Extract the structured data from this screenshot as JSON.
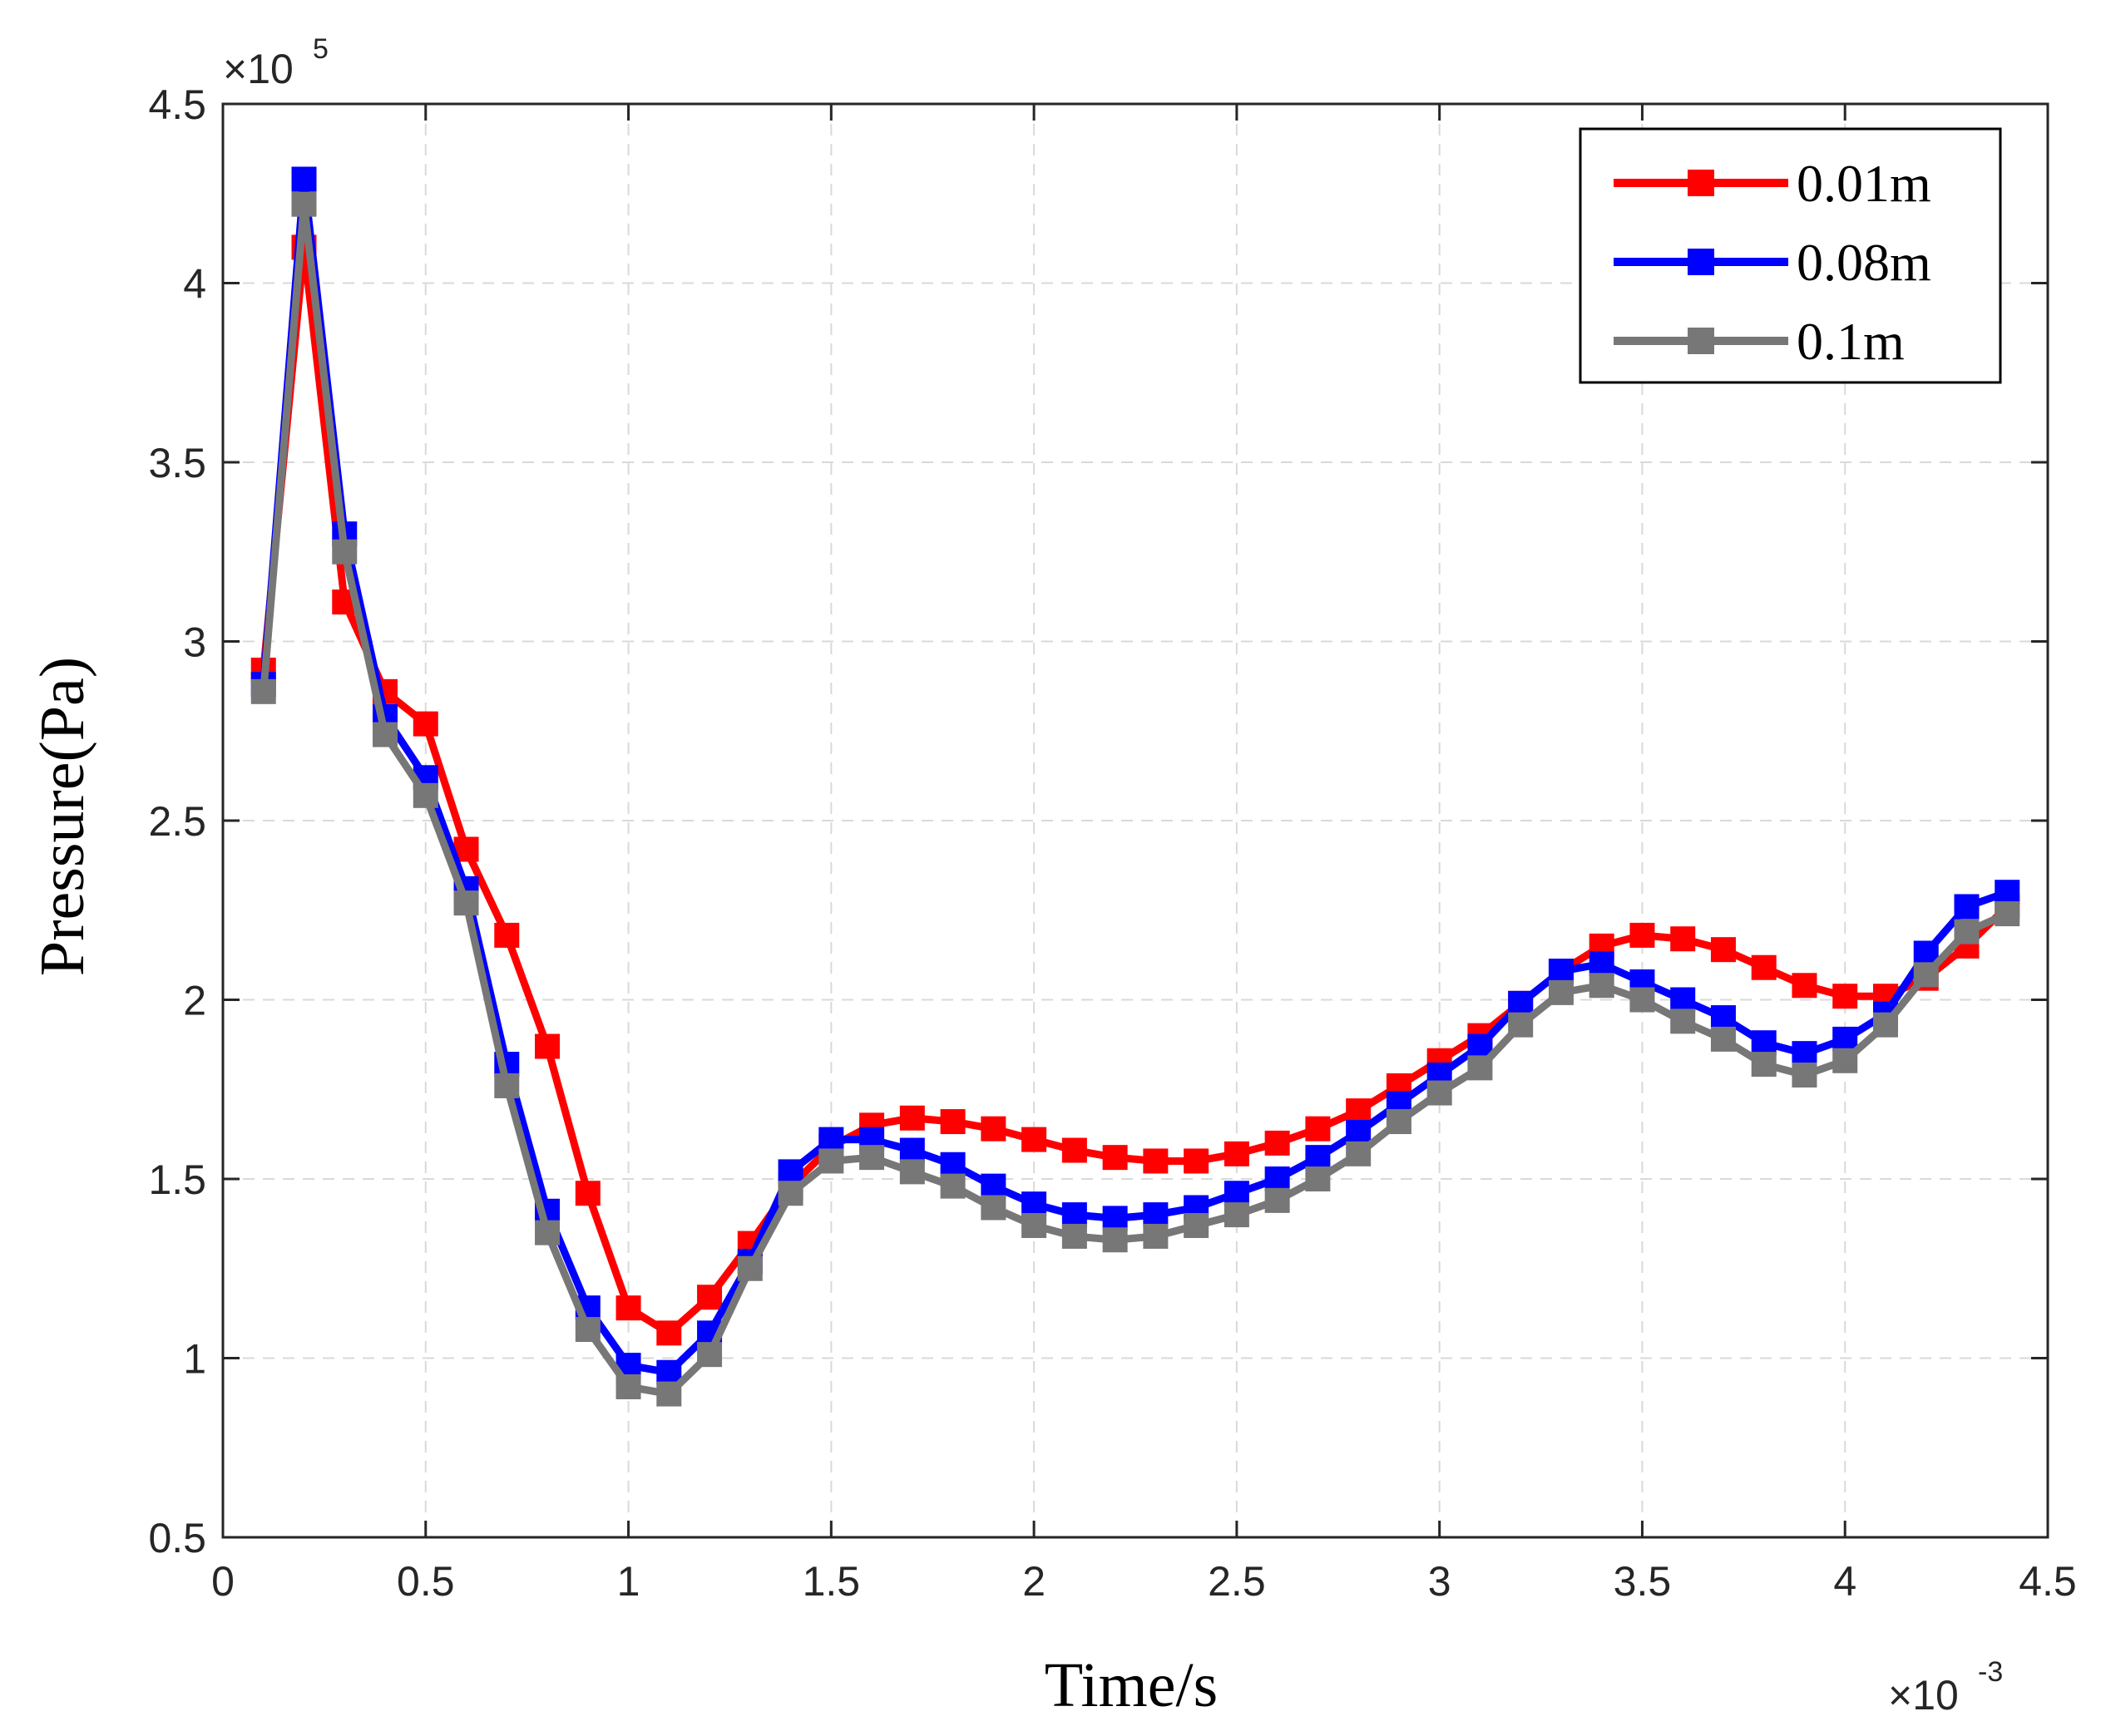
{
  "chart_data": {
    "type": "line",
    "title": "",
    "xlabel": "Time/s",
    "ylabel": "Pressure(Pa)",
    "x_multiplier_label": "×10",
    "x_multiplier_exp": "-3",
    "y_multiplier_label": "×10",
    "y_multiplier_exp": "5",
    "xlim": [
      0,
      4.5
    ],
    "ylim": [
      0.5,
      4.5
    ],
    "xticks": [
      0,
      0.5,
      1,
      1.5,
      2,
      2.5,
      3,
      3.5,
      4,
      4.5
    ],
    "xtick_labels": [
      "0",
      "0.5",
      "1",
      "1.5",
      "2",
      "2.5",
      "3",
      "3.5",
      "4",
      "4.5"
    ],
    "yticks": [
      0.5,
      1,
      1.5,
      2,
      2.5,
      3,
      3.5,
      4,
      4.5
    ],
    "ytick_labels": [
      "0.5",
      "1",
      "1.5",
      "2",
      "2.5",
      "3",
      "3.5",
      "4",
      "4.5"
    ],
    "grid": true,
    "legend_position": "top-right",
    "x": [
      0.1,
      0.2,
      0.3,
      0.4,
      0.5,
      0.6,
      0.7,
      0.8,
      0.9,
      1.0,
      1.1,
      1.2,
      1.3,
      1.4,
      1.5,
      1.6,
      1.7,
      1.8,
      1.9,
      2.0,
      2.1,
      2.2,
      2.3,
      2.4,
      2.5,
      2.6,
      2.7,
      2.8,
      2.9,
      3.0,
      3.1,
      3.2,
      3.3,
      3.4,
      3.5,
      3.6,
      3.7,
      3.8,
      3.9,
      4.0,
      4.1,
      4.2,
      4.3,
      4.4
    ],
    "series": [
      {
        "name": "0.01m",
        "color": "#ff0000",
        "values": [
          2.92,
          4.1,
          3.11,
          2.86,
          2.77,
          2.42,
          2.18,
          1.87,
          1.46,
          1.14,
          1.07,
          1.17,
          1.32,
          1.48,
          1.59,
          1.65,
          1.67,
          1.66,
          1.64,
          1.61,
          1.58,
          1.56,
          1.55,
          1.55,
          1.57,
          1.6,
          1.64,
          1.69,
          1.76,
          1.83,
          1.9,
          1.99,
          2.08,
          2.15,
          2.18,
          2.17,
          2.14,
          2.09,
          2.04,
          2.01,
          2.01,
          2.06,
          2.15,
          2.26
        ]
      },
      {
        "name": "0.08m",
        "color": "#0000ff",
        "values": [
          2.88,
          4.29,
          3.3,
          2.79,
          2.62,
          2.31,
          1.82,
          1.41,
          1.14,
          0.98,
          0.96,
          1.07,
          1.27,
          1.52,
          1.61,
          1.61,
          1.58,
          1.54,
          1.48,
          1.43,
          1.4,
          1.39,
          1.4,
          1.42,
          1.46,
          1.5,
          1.56,
          1.63,
          1.71,
          1.79,
          1.87,
          1.99,
          2.08,
          2.1,
          2.05,
          2.0,
          1.95,
          1.88,
          1.85,
          1.89,
          1.96,
          2.13,
          2.26,
          2.3
        ]
      },
      {
        "name": "0.1m",
        "color": "#777777",
        "values": [
          2.86,
          4.22,
          3.25,
          2.74,
          2.57,
          2.27,
          1.76,
          1.35,
          1.08,
          0.92,
          0.9,
          1.01,
          1.25,
          1.46,
          1.55,
          1.56,
          1.52,
          1.48,
          1.42,
          1.37,
          1.34,
          1.33,
          1.34,
          1.37,
          1.4,
          1.44,
          1.5,
          1.57,
          1.66,
          1.74,
          1.81,
          1.93,
          2.02,
          2.04,
          2.0,
          1.94,
          1.89,
          1.82,
          1.79,
          1.83,
          1.93,
          2.07,
          2.19,
          2.24
        ]
      }
    ]
  }
}
